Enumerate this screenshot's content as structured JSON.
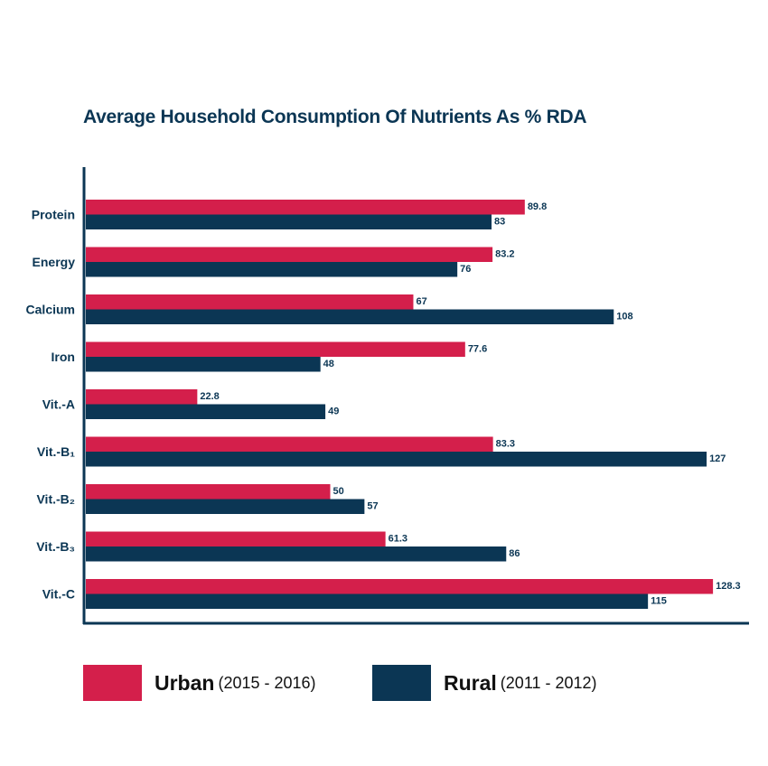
{
  "chart_data": {
    "type": "bar",
    "orientation": "horizontal",
    "title": "Average Household Consumption Of Nutrients As % RDA",
    "categories": [
      "Protein",
      "Energy",
      "Calcium",
      "Iron",
      "Vit.-A",
      "Vit.-B₁",
      "Vit.-B₂",
      "Vit.-B₃",
      "Vit.-C"
    ],
    "series": [
      {
        "name": "Urban",
        "period": "(2015 - 2016)",
        "color": "#d41f4b",
        "values": [
          89.8,
          83.2,
          67,
          77.6,
          22.8,
          83.3,
          50,
          61.3,
          128.3
        ]
      },
      {
        "name": "Rural",
        "period": "(2011 - 2012)",
        "color": "#0b3654",
        "values": [
          83,
          76,
          108,
          48,
          49,
          127,
          57,
          86,
          115
        ]
      }
    ],
    "data_labels": true,
    "grid": false,
    "legend_position": "bottom",
    "xlim": [
      0,
      135
    ]
  }
}
